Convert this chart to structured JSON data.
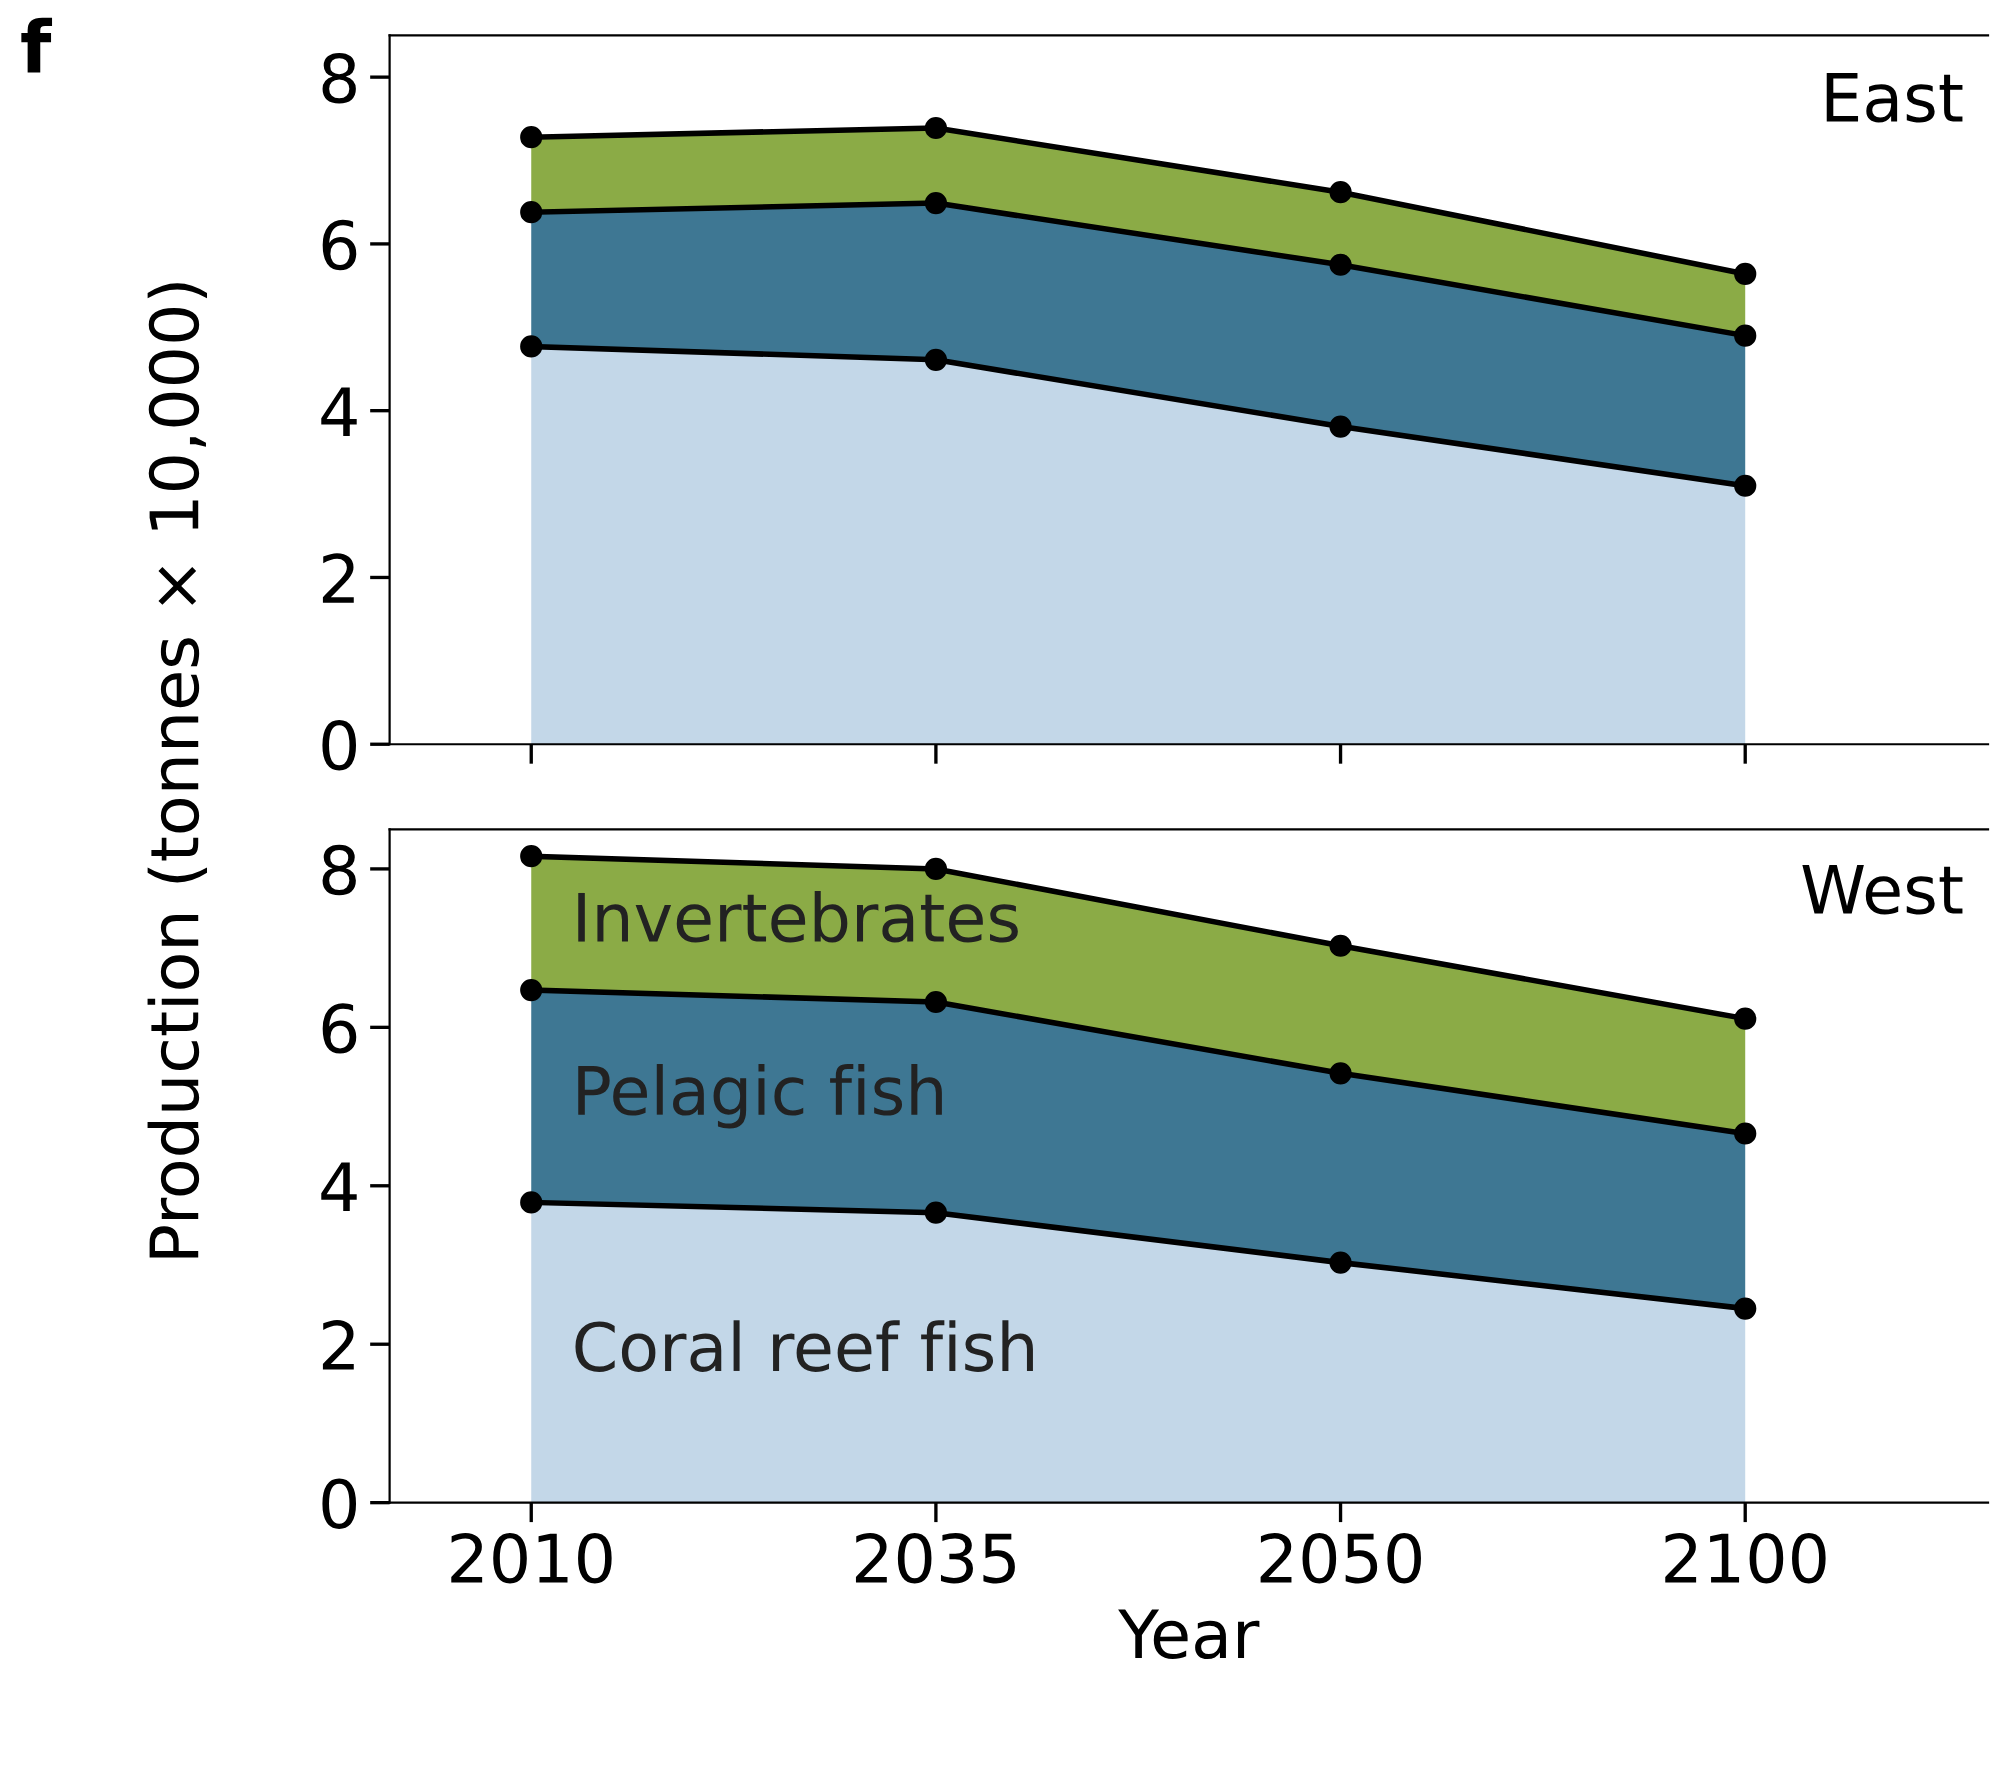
{
  "chart_data": [
    {
      "type": "area",
      "stacked": true,
      "title": "East",
      "ylabel": "Production (tonnes × 10,000)",
      "annotations": [
        "f"
      ],
      "categories": [
        "2010",
        "2035",
        "2050",
        "2100"
      ],
      "series": [
        {
          "color": "#c3d7e8",
          "values": [
            4.77,
            4.61,
            3.81,
            3.1
          ]
        },
        {
          "color": "#3e7793",
          "values": [
            1.61,
            1.88,
            1.94,
            1.8
          ]
        },
        {
          "color": "#8bab46",
          "values": [
            0.9,
            0.9,
            0.87,
            0.74
          ]
        }
      ],
      "ylim": [
        0,
        8.5
      ],
      "yticks": [
        0,
        2,
        4,
        6,
        8
      ],
      "marker": "circle",
      "grid": false,
      "legend": false,
      "tick_labels": "y"
    },
    {
      "type": "area",
      "stacked": true,
      "title": "West",
      "xlabel": "Year",
      "categories": [
        "2010",
        "2035",
        "2050",
        "2100"
      ],
      "series": [
        {
          "name": "Coral reef fish",
          "color": "#c3d7e8",
          "values": [
            3.79,
            3.66,
            3.03,
            2.45
          ]
        },
        {
          "name": "Pelagic fish",
          "color": "#3e7793",
          "values": [
            2.68,
            2.66,
            2.39,
            2.21
          ]
        },
        {
          "name": "Invertebrates",
          "color": "#8bab46",
          "values": [
            1.69,
            1.68,
            1.61,
            1.45
          ]
        }
      ],
      "ylim": [
        0,
        8.5
      ],
      "yticks": [
        0,
        2,
        4,
        6,
        8
      ],
      "marker": "circle",
      "grid": false,
      "legend": false
    }
  ]
}
